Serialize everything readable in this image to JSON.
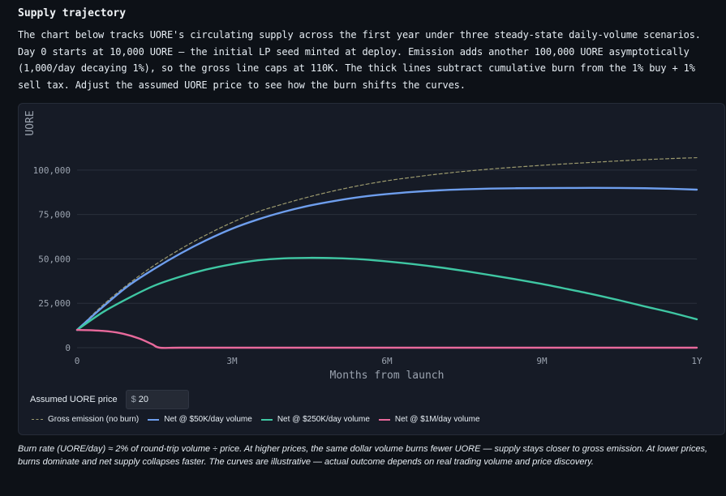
{
  "section": {
    "title": "Supply trajectory",
    "intro": "The chart below tracks UORE's circulating supply across the first year under three steady-state daily-volume scenarios. Day 0 starts at 10,000 UORE — the initial LP seed minted at deploy. Emission adds another 100,000 UORE asymptotically (1,000/day decaying 1%), so the gross line caps at 110K. The thick lines subtract cumulative burn from the 1% buy + 1% sell tax. Adjust the assumed UORE price to see how the burn shifts the curves."
  },
  "controls": {
    "price_label": "Assumed UORE price",
    "price_currency": "$",
    "price_value": "20"
  },
  "footnote": "Burn rate (UORE/day) ≈ 2% of round-trip volume ÷ price. At higher prices, the same dollar volume burns fewer UORE — supply stays closer to gross emission. At lower prices, burns dominate and net supply collapses faster. The curves are illustrative — actual outcome depends on real trading volume and price discovery.",
  "chart_data": {
    "type": "line",
    "xlabel": "Months from launch",
    "ylabel": "UORE",
    "xlim": [
      0,
      12
    ],
    "ylim": [
      0,
      110000
    ],
    "x_ticks": [
      {
        "value": 0,
        "label": "0"
      },
      {
        "value": 3,
        "label": "3M"
      },
      {
        "value": 6,
        "label": "6M"
      },
      {
        "value": 9,
        "label": "9M"
      },
      {
        "value": 12,
        "label": "1Y"
      }
    ],
    "y_ticks": [
      {
        "value": 0,
        "label": "0"
      },
      {
        "value": 25000,
        "label": "25,000"
      },
      {
        "value": 50000,
        "label": "50,000"
      },
      {
        "value": 75000,
        "label": "75,000"
      },
      {
        "value": 100000,
        "label": "100,000"
      }
    ],
    "grid": true,
    "legend_position": "bottom-left",
    "series": [
      {
        "name": "Gross emission (no burn)",
        "color": "#9c9a6e",
        "style": "dashed",
        "x": [
          0,
          0.5,
          1,
          1.5,
          2,
          2.5,
          3,
          3.5,
          4,
          4.5,
          5,
          5.5,
          6,
          6.5,
          7,
          7.5,
          8,
          8.5,
          9,
          9.5,
          10,
          10.5,
          11,
          11.5,
          12
        ],
        "y": [
          10000,
          24000,
          36000,
          46500,
          55500,
          63500,
          70500,
          76500,
          81000,
          85000,
          88500,
          91500,
          94000,
          96000,
          97800,
          99300,
          100600,
          101700,
          102700,
          103600,
          104400,
          105200,
          105900,
          106500,
          107000
        ]
      },
      {
        "name": "Net @ $50K/day volume",
        "color": "#6e9eed",
        "style": "solid",
        "x": [
          0,
          0.5,
          1,
          1.5,
          2,
          2.5,
          3,
          3.5,
          4,
          4.5,
          5,
          5.5,
          6,
          6.5,
          7,
          7.5,
          8,
          8.5,
          9,
          9.5,
          10,
          10.5,
          11,
          11.5,
          12
        ],
        "y": [
          10000,
          23000,
          35000,
          44500,
          53000,
          60500,
          67000,
          72200,
          76500,
          80000,
          82700,
          84900,
          86500,
          87700,
          88600,
          89200,
          89600,
          89800,
          89900,
          89950,
          90000,
          89950,
          89800,
          89500,
          89000
        ]
      },
      {
        "name": "Net @ $250K/day volume",
        "color": "#3fc7a3",
        "style": "solid",
        "x": [
          0,
          0.5,
          1,
          1.5,
          2,
          2.5,
          3,
          3.5,
          4,
          4.5,
          5,
          5.5,
          6,
          6.5,
          7,
          7.5,
          8,
          8.5,
          9,
          9.5,
          10,
          10.5,
          11,
          11.5,
          12
        ],
        "y": [
          10000,
          20000,
          28000,
          35000,
          40000,
          44000,
          47000,
          49200,
          50300,
          50600,
          50400,
          49800,
          48600,
          47100,
          45300,
          43200,
          40900,
          38500,
          35900,
          33000,
          30000,
          26700,
          23200,
          19800,
          16000
        ]
      },
      {
        "name": "Net @ $1M/day volume",
        "color": "#e8699b",
        "style": "solid",
        "x": [
          0,
          0.3,
          0.6,
          0.9,
          1.2,
          1.45,
          1.6,
          2,
          3,
          4,
          5,
          6,
          7,
          8,
          9,
          10,
          11,
          12
        ],
        "y": [
          10000,
          9800,
          9200,
          7800,
          5200,
          2000,
          0,
          0,
          0,
          0,
          0,
          0,
          0,
          0,
          0,
          0,
          0,
          0
        ]
      }
    ]
  }
}
